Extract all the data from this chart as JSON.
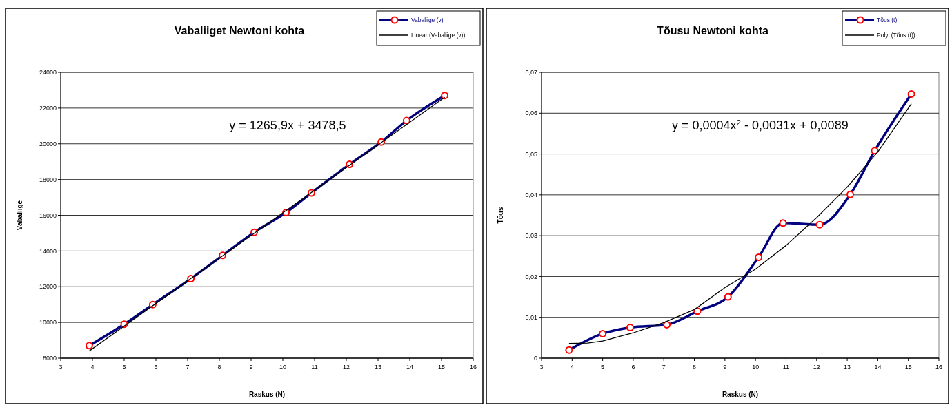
{
  "chart_data": [
    {
      "type": "line",
      "title": "Vabaliiget Newtoni kohta",
      "xlabel": "Raskus (N)",
      "ylabel": "Vabaliige",
      "xlim": [
        3,
        16
      ],
      "xticks": [
        3,
        4,
        5,
        6,
        7,
        8,
        9,
        10,
        11,
        12,
        13,
        14,
        15,
        16
      ],
      "ylim": [
        8000,
        24000
      ],
      "yticks": [
        8000,
        10000,
        12000,
        14000,
        16000,
        18000,
        20000,
        22000,
        24000
      ],
      "grid": "y",
      "legend": "top right",
      "annotations": [
        "y = 1265,9x + 3478,5"
      ],
      "series": [
        {
          "name": "Vabaliige (v)",
          "color": "#000080",
          "marker": "circle",
          "x": [
            3.9,
            5.0,
            5.9,
            7.1,
            8.1,
            9.1,
            10.1,
            10.9,
            12.1,
            13.1,
            13.9,
            15.1
          ],
          "values": [
            8700,
            9900,
            11000,
            12450,
            13750,
            15050,
            16150,
            17250,
            18850,
            20100,
            21300,
            22700
          ]
        },
        {
          "name": "Linear (Vabaliige (v))",
          "type": "line",
          "color": "#000000",
          "marker": "none",
          "x": [
            3.9,
            15.1
          ],
          "values": [
            8400,
            22600
          ]
        }
      ]
    },
    {
      "type": "line",
      "title": "Tõusu Newtoni kohta",
      "xlabel": "Raskus (N)",
      "ylabel": "Tõus",
      "xlim": [
        3,
        16
      ],
      "xticks": [
        3,
        4,
        5,
        6,
        7,
        8,
        9,
        10,
        11,
        12,
        13,
        14,
        15,
        16
      ],
      "ylim": [
        0,
        0.07
      ],
      "yticks": [
        0,
        {
          "value": 0.01,
          "label": "0,01"
        },
        {
          "value": 0.02,
          "label": "0,02"
        },
        {
          "value": 0.03,
          "label": "0,03"
        },
        {
          "value": 0.04,
          "label": "0,04"
        },
        {
          "value": 0.05,
          "label": "0,05"
        },
        {
          "value": 0.06,
          "label": "0,06"
        },
        {
          "value": 0.07,
          "label": "0,07"
        }
      ],
      "grid": "y",
      "legend": "top right",
      "annotations": [
        "y = 0,0004x$^{2}$ - 0,0031x + 0,0089"
      ],
      "series": [
        {
          "name": "Tõus (t)",
          "color": "#000080",
          "marker": "circle",
          "x": [
            3.9,
            5.0,
            5.9,
            7.1,
            8.1,
            9.1,
            10.1,
            10.9,
            12.1,
            13.1,
            13.9,
            15.1
          ],
          "values": [
            0.002,
            0.006,
            0.0075,
            0.0082,
            0.0115,
            0.015,
            0.0247,
            0.0331,
            0.0327,
            0.0401,
            0.0508,
            0.0647
          ]
        },
        {
          "name": "Poly. (Tõus (t))",
          "type": "line",
          "color": "#000000",
          "marker": "none",
          "x": [
            3.9,
            4.5,
            5,
            6,
            7,
            8,
            9,
            10,
            11,
            12,
            13,
            14,
            15.1
          ],
          "values": [
            0.0036,
            0.0037,
            0.0042,
            0.0062,
            0.0087,
            0.0119,
            0.0173,
            0.0218,
            0.0276,
            0.0344,
            0.0419,
            0.0505,
            0.0623
          ]
        }
      ]
    }
  ]
}
